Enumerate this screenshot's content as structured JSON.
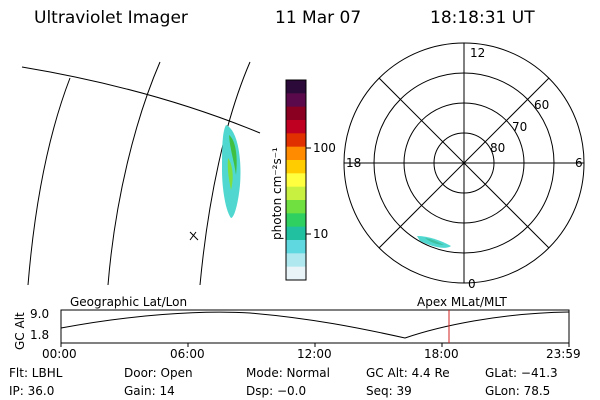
{
  "header": {
    "instrument": "Ultraviolet Imager",
    "date": "11 Mar 07",
    "time": "18:18:31 UT"
  },
  "colorbar": {
    "unit_label": "photon cm⁻²s⁻¹",
    "ticks": [
      "100",
      "10"
    ],
    "colors": [
      "#2b0a3a",
      "#5a0a4a",
      "#8a0020",
      "#c00020",
      "#e03000",
      "#ff8c00",
      "#ffcc00",
      "#ffff40",
      "#c8f040",
      "#70e040",
      "#30d060",
      "#20c0a0",
      "#60d8e0",
      "#b0e8f0",
      "#e8f4f8"
    ]
  },
  "polar": {
    "mlt_labels": {
      "top": "12",
      "left": "18",
      "right": "6",
      "bottom": "0"
    },
    "lat_labels": [
      "60",
      "70",
      "80"
    ]
  },
  "timeline": {
    "left_label": "Geographic Lat/Lon",
    "right_label": "Apex MLat/MLT",
    "axis_title": "GC Alt",
    "y_ticks": [
      "9.0",
      "1.8"
    ],
    "x_ticks": [
      "00:00",
      "06:00",
      "12:00",
      "18:00",
      "23:59"
    ],
    "marker_color": "#d02020"
  },
  "status": {
    "filter": "Flt: LBHL",
    "door": "Door: Open",
    "mode": "Mode: Normal",
    "gc_alt": "GC Alt: 4.4 Re",
    "glat": "GLat: −41.3",
    "ip": "IP: 36.0",
    "gain": "Gain: 14",
    "dsp": "Dsp:   −0.0",
    "seq": "Seq: 39",
    "glon": "GLon:  78.5"
  }
}
